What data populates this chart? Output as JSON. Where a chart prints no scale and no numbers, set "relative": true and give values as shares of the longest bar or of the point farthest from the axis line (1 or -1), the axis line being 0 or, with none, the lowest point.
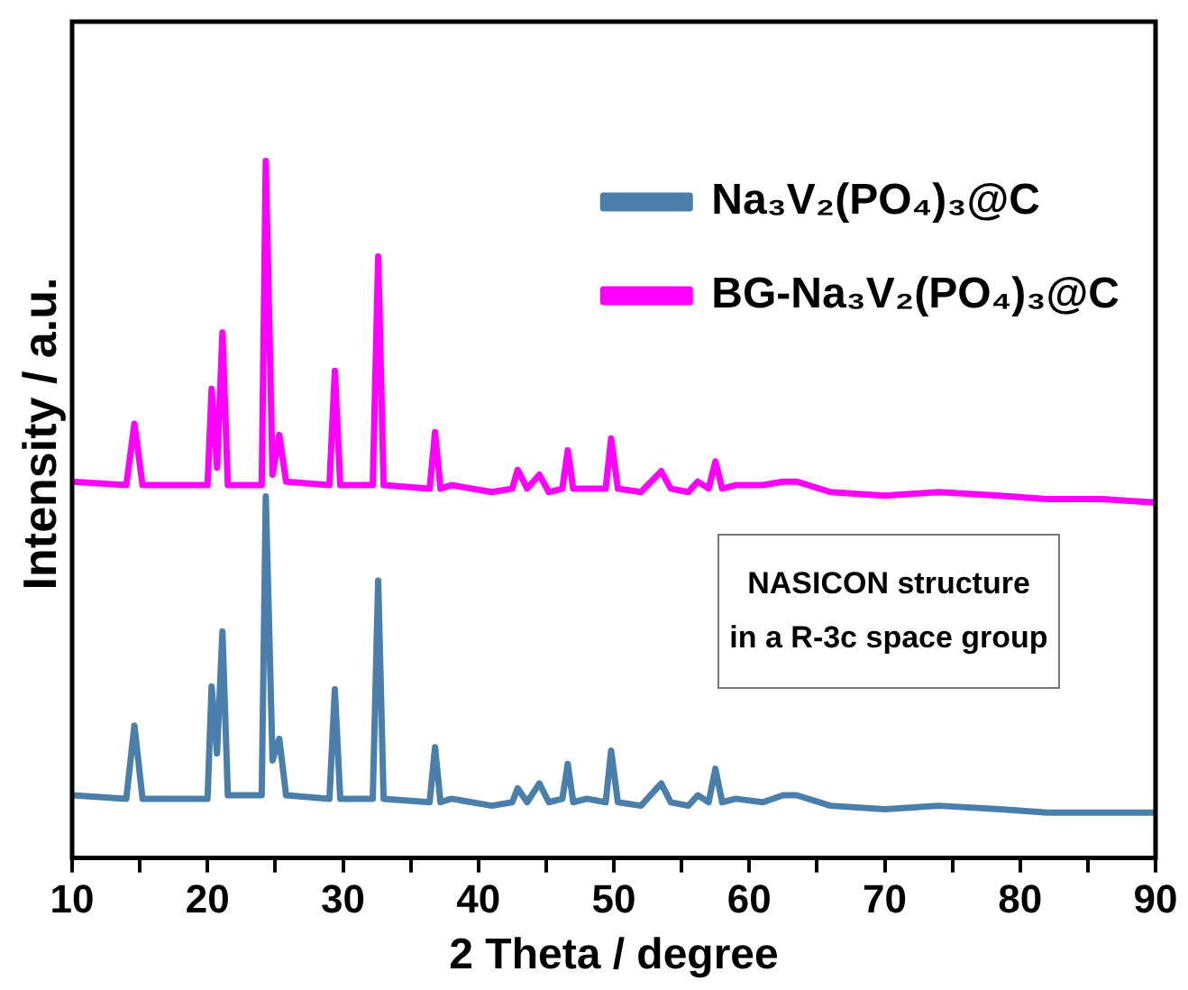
{
  "chart_data": {
    "type": "line",
    "relative": true,
    "xlabel": "2 Theta / degree",
    "ylabel": "Intensity / a.u.",
    "x": [
      10,
      14.0,
      14.6,
      15.2,
      20.0,
      20.3,
      20.7,
      21.1,
      21.5,
      24.0,
      24.3,
      24.8,
      25.3,
      25.8,
      29.0,
      29.4,
      29.8,
      32.2,
      32.6,
      33.0,
      36.4,
      36.8,
      37.2,
      38.0,
      41.0,
      42.5,
      42.9,
      43.6,
      44.5,
      45.2,
      46.2,
      46.6,
      47.0,
      48.0,
      49.4,
      49.8,
      50.3,
      52,
      53.5,
      54.2,
      55.5,
      56.2,
      57.0,
      57.5,
      58.0,
      59,
      61,
      62.5,
      63.5,
      66,
      70,
      74,
      78.5,
      82,
      86,
      90
    ],
    "xlim": [
      10,
      90
    ],
    "xticks": [
      10,
      {
        "value": 15,
        "label": null
      },
      20,
      {
        "value": 25,
        "label": null
      },
      30,
      {
        "value": 35,
        "label": null
      },
      40,
      {
        "value": 45,
        "label": null
      },
      50,
      {
        "value": 55,
        "label": null
      },
      60,
      {
        "value": 65,
        "label": null
      },
      70,
      {
        "value": 75,
        "label": null
      },
      80,
      {
        "value": 85,
        "label": null
      },
      90
    ],
    "series": [
      {
        "name": "Na₃V₂(PO₄)₃@C",
        "color": "#4a7eab",
        "values": [
          0.09,
          0.085,
          0.19,
          0.085,
          0.085,
          0.246,
          0.15,
          0.325,
          0.09,
          0.09,
          0.519,
          0.14,
          0.171,
          0.09,
          0.085,
          0.242,
          0.085,
          0.085,
          0.398,
          0.085,
          0.08,
          0.159,
          0.08,
          0.085,
          0.075,
          0.08,
          0.1,
          0.08,
          0.107,
          0.08,
          0.085,
          0.135,
          0.08,
          0.085,
          0.08,
          0.154,
          0.08,
          0.075,
          0.107,
          0.08,
          0.075,
          0.09,
          0.08,
          0.128,
          0.08,
          0.085,
          0.08,
          0.09,
          0.09,
          0.075,
          0.07,
          0.075,
          0.07,
          0.065,
          0.065,
          0.065
        ]
      },
      {
        "name": "BG-Na₃V₂(PO₄)₃@C",
        "color": "#ff00ff",
        "values": [
          0.54,
          0.535,
          0.623,
          0.535,
          0.535,
          0.673,
          0.56,
          0.754,
          0.535,
          0.535,
          1.0,
          0.55,
          0.607,
          0.54,
          0.535,
          0.699,
          0.535,
          0.535,
          0.863,
          0.535,
          0.53,
          0.611,
          0.53,
          0.535,
          0.525,
          0.53,
          0.557,
          0.53,
          0.55,
          0.525,
          0.53,
          0.585,
          0.53,
          0.53,
          0.53,
          0.602,
          0.53,
          0.525,
          0.555,
          0.53,
          0.525,
          0.54,
          0.53,
          0.569,
          0.53,
          0.535,
          0.535,
          0.54,
          0.54,
          0.525,
          0.52,
          0.525,
          0.52,
          0.515,
          0.515,
          0.51
        ]
      }
    ],
    "annotations": [
      "NASICON structure\nin a R-3c space group"
    ],
    "legend": "top right",
    "grid": false,
    "marker": "none",
    "line_style": "solid"
  }
}
